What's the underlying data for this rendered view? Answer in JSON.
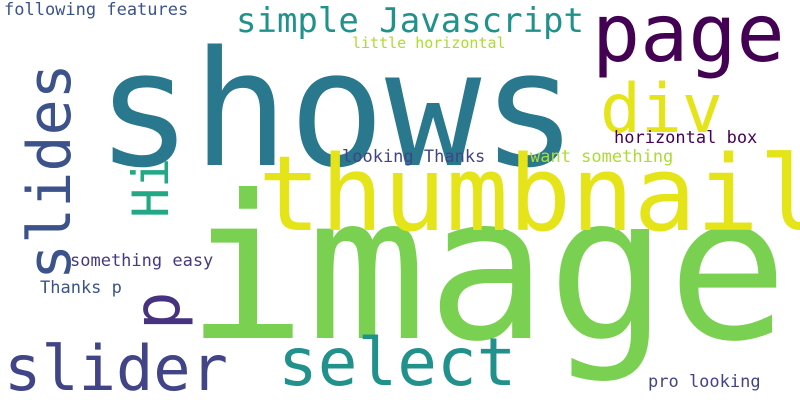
{
  "word_cloud": {
    "background": "#ffffff",
    "words": [
      {
        "id": "shows",
        "text": "shows",
        "color": "#2a788e"
      },
      {
        "id": "image",
        "text": "image",
        "color": "#7ad151"
      },
      {
        "id": "thumbnail",
        "text": "thumbnail",
        "color": "#e5e419"
      },
      {
        "id": "page",
        "text": "page",
        "color": "#440154"
      },
      {
        "id": "div",
        "text": "div",
        "color": "#e5e419"
      },
      {
        "id": "simple",
        "text": "simple Javascript",
        "color": "#21918c"
      },
      {
        "id": "slides",
        "text": "slides",
        "color": "#3b528b"
      },
      {
        "id": "hi",
        "text": "Hi",
        "color": "#22a884"
      },
      {
        "id": "p",
        "text": "p",
        "color": "#46327e"
      },
      {
        "id": "slider",
        "text": "slider",
        "color": "#414487"
      },
      {
        "id": "select",
        "text": "select",
        "color": "#21918c"
      },
      {
        "id": "following",
        "text": "following features",
        "color": "#3b528b"
      },
      {
        "id": "little",
        "text": "little horizontal",
        "color": "#addc30"
      },
      {
        "id": "looking",
        "text": "looking Thanks",
        "color": "#414487"
      },
      {
        "id": "want",
        "text": "want something",
        "color": "#addc30"
      },
      {
        "id": "horizontal",
        "text": "horizontal box",
        "color": "#440154"
      },
      {
        "id": "something",
        "text": "something easy",
        "color": "#443983"
      },
      {
        "id": "thanksp",
        "text": "Thanks p",
        "color": "#3b528b"
      },
      {
        "id": "pro",
        "text": "pro looking",
        "color": "#414487"
      }
    ]
  }
}
